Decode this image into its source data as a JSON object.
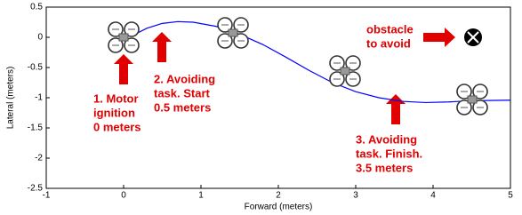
{
  "chart_data": {
    "type": "line",
    "xlabel": "Forward (meters)",
    "ylabel": "Lateral (meters)",
    "x": [
      0.1,
      0.3,
      0.5,
      0.7,
      0.9,
      1.2,
      1.5,
      1.8,
      2.1,
      2.4,
      2.7,
      3.0,
      3.3,
      3.6,
      3.9,
      4.2,
      4.5,
      5.0
    ],
    "values": [
      0.02,
      0.15,
      0.23,
      0.26,
      0.25,
      0.18,
      0.05,
      -0.12,
      -0.33,
      -0.55,
      -0.75,
      -0.9,
      -1.0,
      -1.06,
      -1.08,
      -1.07,
      -1.05,
      -1.04
    ],
    "color": "#0000ff",
    "xlim": [
      -1,
      5
    ],
    "ylim": [
      -2.5,
      0.5
    ],
    "xticks": [
      -1,
      0,
      1,
      2,
      3,
      4,
      5
    ],
    "yticks": [
      0.5,
      0,
      -0.5,
      -1,
      -1.5,
      -2,
      -2.5
    ],
    "annotations": [
      {
        "lines": [
          "1. Motor",
          "ignition",
          "0 meters"
        ]
      },
      {
        "lines": [
          "2. Avoiding",
          "task. Start",
          "0.5 meters"
        ]
      },
      {
        "lines": [
          "3. Avoiding",
          "task. Finish.",
          "3.5 meters"
        ]
      },
      {
        "lines": [
          "obstacle",
          "to avoid"
        ]
      }
    ]
  }
}
